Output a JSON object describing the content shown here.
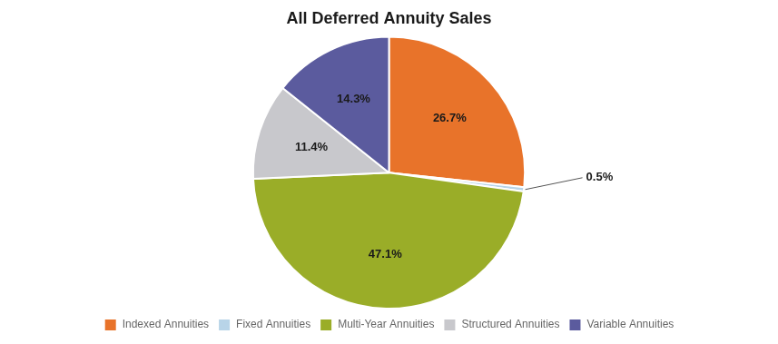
{
  "chart_data": {
    "type": "pie",
    "title": "All Deferred Annuity Sales",
    "categories": [
      "Indexed Annuities",
      "Fixed Annuities",
      "Multi-Year Annuities",
      "Structured Annuities",
      "Variable Annuities"
    ],
    "values": [
      26.7,
      0.5,
      47.1,
      11.4,
      14.3
    ],
    "value_labels": [
      "26.7%",
      "0.5%",
      "47.1%",
      "11.4%",
      "14.3%"
    ],
    "colors": [
      "#E8732A",
      "#B8D4E8",
      "#9AAD28",
      "#C8C8CC",
      "#5B5B9E"
    ],
    "data_labels": true,
    "legend": "bottom"
  }
}
